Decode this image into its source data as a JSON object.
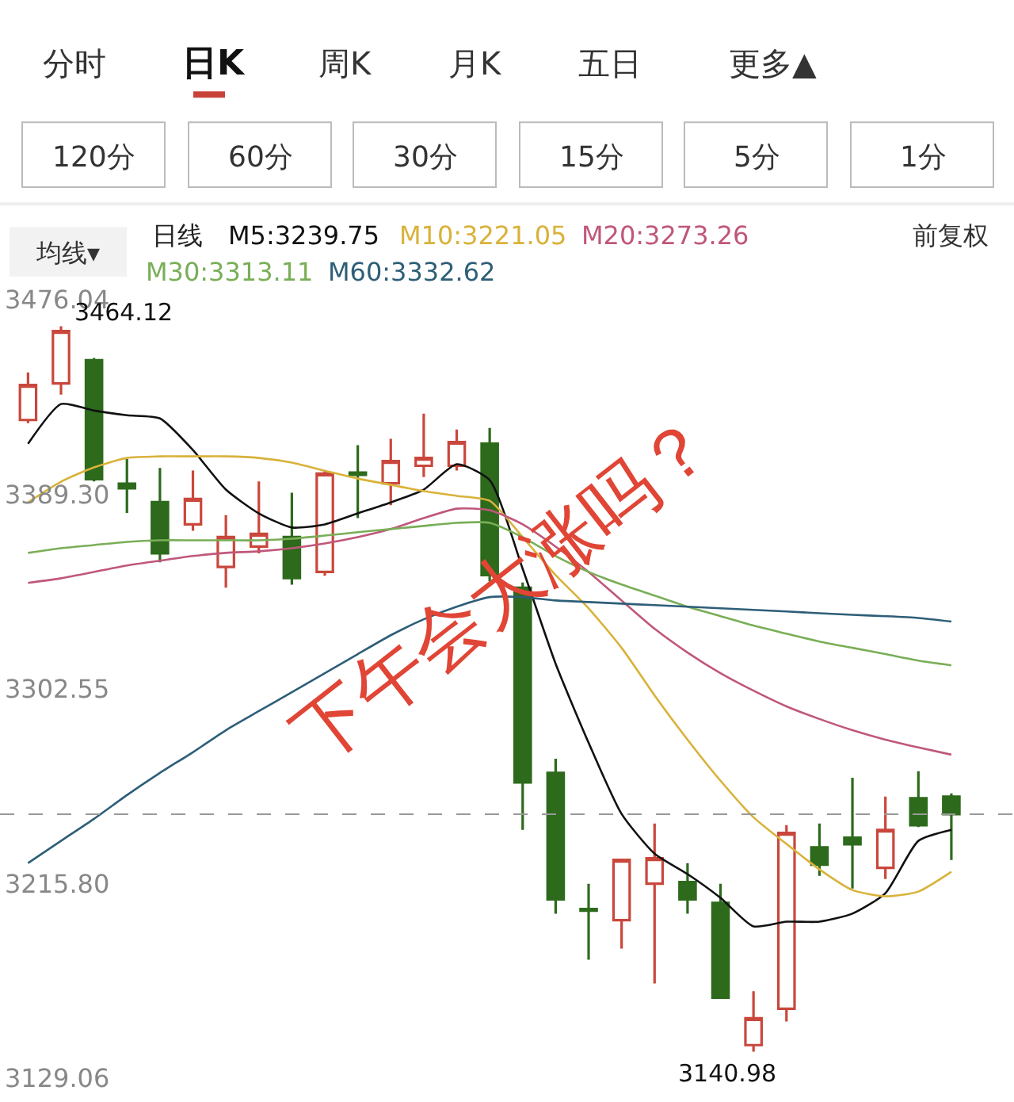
{
  "chart_data": {
    "type": "candlestick",
    "categories": [
      null,
      null,
      null,
      null,
      null,
      null,
      null,
      null,
      null,
      null,
      null,
      null,
      null,
      null,
      null,
      null,
      null,
      null,
      null,
      null,
      null,
      null,
      null,
      null,
      null,
      null,
      null,
      null,
      null
    ],
    "ohlc": [
      [
        3422.4,
        3443.6,
        3421.0,
        3438.0
      ],
      [
        3438.7,
        3464.12,
        3433.7,
        3462.0
      ],
      [
        3449.0,
        3450.0,
        3395.0,
        3396.0
      ],
      [
        3394.0,
        3405.0,
        3381.0,
        3392.0
      ],
      [
        3385.8,
        3401.0,
        3359.0,
        3363.0
      ],
      [
        3375.9,
        3399.9,
        3373.0,
        3387.2
      ],
      [
        3356.9,
        3380.0,
        3347.7,
        3370.3
      ],
      [
        3366.0,
        3395.0,
        3363.0,
        3371.7
      ],
      [
        3370.3,
        3390.0,
        3349.0,
        3352.0
      ],
      [
        3354.7,
        3400.0,
        3353.0,
        3398.5
      ],
      [
        3399.0,
        3411.2,
        3378.7,
        3398.0
      ],
      [
        3394.2,
        3414.0,
        3384.4,
        3404.1
      ],
      [
        3402.0,
        3425.2,
        3397.0,
        3405.5
      ],
      [
        3402.0,
        3418.2,
        3399.9,
        3412.6
      ],
      [
        3411.9,
        3418.9,
        3350.5,
        3353.3
      ],
      [
        3347.7,
        3350.0,
        3239.8,
        3260.9
      ],
      [
        3265.2,
        3271.5,
        3202.4,
        3208.8
      ],
      [
        3204.5,
        3215.8,
        3182.0,
        3203.8
      ],
      [
        3199.6,
        3227.0,
        3186.9,
        3226.4
      ],
      [
        3215.8,
        3242.6,
        3171.4,
        3227.1
      ],
      [
        3216.5,
        3225.0,
        3202.4,
        3208.8
      ],
      [
        3207.3,
        3215.8,
        3165.0,
        3165.0
      ],
      [
        3143.9,
        3167.9,
        3140.98,
        3155.9
      ],
      [
        3160.1,
        3241.9,
        3154.4,
        3238.4
      ],
      [
        3232.0,
        3242.6,
        3219.3,
        3224.3
      ],
      [
        3236.3,
        3263.0,
        3213.7,
        3233.4
      ],
      [
        3222.9,
        3254.6,
        3217.9,
        3239.8
      ],
      [
        3253.9,
        3265.9,
        3241.0,
        3241.9
      ],
      [
        3254.6,
        3256.0,
        3226.4,
        3246.8
      ]
    ],
    "colors": [
      "#c9473c",
      "#c9473c",
      "#2d6a1c",
      "#2d6a1c",
      "#2d6a1c",
      "#c9473c",
      "#c9473c",
      "#c9473c",
      "#2d6a1c",
      "#c9473c",
      "#2d6a1c",
      "#c9473c",
      "#c9473c",
      "#c9473c",
      "#2d6a1c",
      "#2d6a1c",
      "#2d6a1c",
      "#2d6a1c",
      "#c9473c",
      "#c9473c",
      "#2d6a1c",
      "#2d6a1c",
      "#c9473c",
      "#c9473c",
      "#2d6a1c",
      "#2d6a1c",
      "#c9473c",
      "#2d6a1c",
      "#2d6a1c"
    ],
    "series": [
      {
        "type": "line",
        "name": "M5:3239.75",
        "color": "#111111",
        "values": [
          3411.8,
          3429.5,
          3426.6,
          3424.5,
          3423.1,
          3409.0,
          3391.4,
          3380.8,
          3374.5,
          3375.9,
          3380.8,
          3385.7,
          3391.4,
          3402.7,
          3395.6,
          3356.1,
          3313.8,
          3278.6,
          3246.9,
          3229.2,
          3220.1,
          3209.5,
          3196.8,
          3198.9,
          3198.9,
          3202.5,
          3211.6,
          3234.9,
          3239.8
        ]
      },
      {
        "type": "line",
        "name": "M10:3221.05",
        "color": "#d9b23a",
        "values": [
          3385.7,
          3394.9,
          3401.3,
          3405.5,
          3406.2,
          3406.2,
          3406.2,
          3405.5,
          3403.4,
          3399.8,
          3396.3,
          3393.5,
          3390.7,
          3388.6,
          3386.4,
          3370.2,
          3353.3,
          3338.5,
          3320.9,
          3299.7,
          3280.0,
          3261.7,
          3245.4,
          3233.5,
          3222.2,
          3213.0,
          3210.2,
          3212.3,
          3221.1
        ]
      },
      {
        "type": "line",
        "name": "M20:3273.26",
        "color": "#c0577a",
        "values": [
          3349.8,
          3351.9,
          3354.7,
          3357.6,
          3359.7,
          3361.8,
          3363.2,
          3363.9,
          3365.3,
          3367.4,
          3370.2,
          3373.8,
          3378.7,
          3382.9,
          3382.2,
          3375.9,
          3366.0,
          3354.7,
          3342.0,
          3329.4,
          3318.8,
          3309.6,
          3301.8,
          3294.8,
          3289.2,
          3284.2,
          3280.0,
          3276.5,
          3273.3
        ]
      },
      {
        "type": "line",
        "name": "M30:3313.11",
        "color": "#79ae57",
        "values": [
          3363.2,
          3365.3,
          3366.7,
          3368.1,
          3368.8,
          3368.8,
          3368.8,
          3368.8,
          3369.5,
          3370.9,
          3372.4,
          3373.8,
          3375.2,
          3376.6,
          3376.6,
          3370.2,
          3361.8,
          3354.7,
          3349.1,
          3344.2,
          3339.2,
          3335.0,
          3330.8,
          3327.2,
          3323.7,
          3320.9,
          3318.1,
          3315.2,
          3313.1
        ]
      },
      {
        "type": "line",
        "name": "M60:3332.62",
        "color": "#2e5e78",
        "values": [
          3225.0,
          3234.9,
          3244.7,
          3255.3,
          3265.2,
          3274.4,
          3284.2,
          3292.7,
          3301.1,
          3309.6,
          3318.1,
          3326.5,
          3333.6,
          3339.2,
          3343.5,
          3343.5,
          3342.0,
          3341.3,
          3340.6,
          3339.9,
          3339.2,
          3338.5,
          3337.8,
          3337.1,
          3336.3,
          3335.6,
          3335.0,
          3334.2,
          3332.6
        ]
      }
    ],
    "ylim": [
      3129.06,
      3476.04
    ],
    "yticks": [
      3476.04,
      {
        "value": 3389.3,
        "label": "3389.30"
      },
      3302.55,
      {
        "value": 3215.8,
        "label": "3215.80"
      },
      3129.06
    ],
    "tick_labels": "y",
    "legend": "top",
    "ref_lines": [
      {
        "axis": "y",
        "value": 3246.8,
        "label": null,
        "color": "#999999",
        "line_style": "dashed"
      }
    ],
    "annotations": [
      "分时",
      "日K",
      "周K",
      "月K",
      "五日",
      "更多▲",
      "120分",
      "60分",
      "30分",
      "15分",
      "5分",
      "1分",
      "均线▾",
      "日线",
      "前复权",
      "下午会大涨吗？",
      "3464.12",
      "3140.98"
    ]
  }
}
